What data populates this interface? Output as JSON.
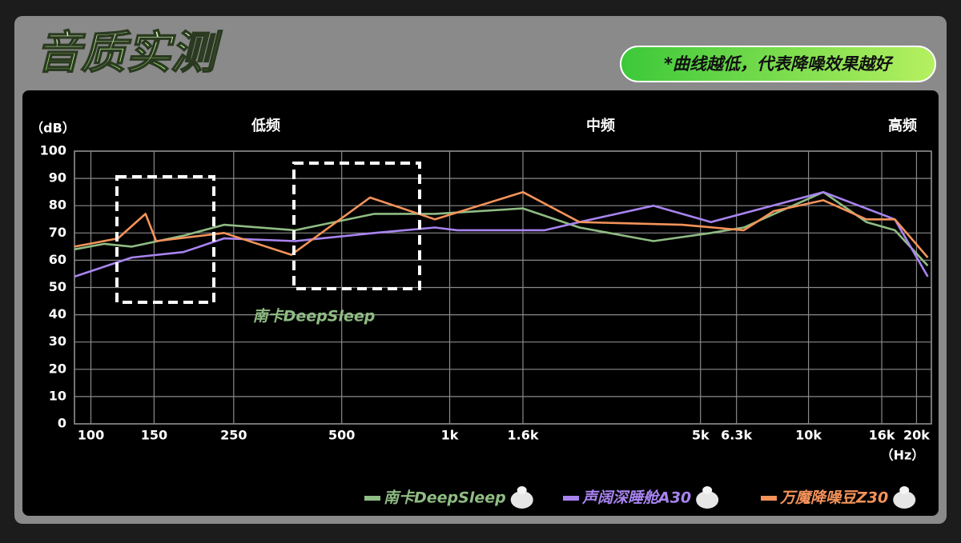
{
  "header": {
    "title": "音质实测",
    "note": "*曲线越低，代表降噪效果越好"
  },
  "chart_data": {
    "type": "line",
    "y_unit": "（dB）",
    "x_unit": "（Hz）",
    "bands": [
      "低频",
      "中频",
      "高频"
    ],
    "annotation": "南卡DeepSleep",
    "xscale": "log",
    "grid": true,
    "xlim": [
      90,
      22000
    ],
    "ylim": [
      0,
      100
    ],
    "xticks": [
      100,
      150,
      250,
      500,
      {
        "value": 1000,
        "label": "1k"
      },
      {
        "value": 1600,
        "label": "1.6k"
      },
      {
        "value": 5000,
        "label": "5k"
      },
      {
        "value": 6300,
        "label": "6.3k"
      },
      {
        "value": 10000,
        "label": "10k"
      },
      {
        "value": 16000,
        "label": "16k"
      },
      {
        "value": 20000,
        "label": "20k"
      }
    ],
    "yticks": [
      0,
      10,
      20,
      30,
      40,
      50,
      60,
      70,
      80,
      90,
      100
    ],
    "series": [
      {
        "name": "南卡DeepSleep",
        "color": "#8fbc83",
        "x": [
          90,
          109,
          130,
          181,
          235,
          371,
          617,
          910,
          1600,
          2300,
          3700,
          5350,
          6600,
          11000,
          14500,
          17400,
          21500
        ],
        "values": [
          64,
          66,
          65,
          69,
          73,
          71,
          77,
          77,
          79,
          72,
          67,
          70,
          72,
          85,
          74,
          71,
          58
        ]
      },
      {
        "name": "声阔深睡舱A30",
        "color": "#a884f0",
        "x": [
          90,
          130,
          181,
          235,
          371,
          617,
          910,
          1050,
          1840,
          2300,
          3700,
          5350,
          11000,
          17400,
          21500
        ],
        "values": [
          54,
          61,
          63,
          68,
          67,
          70,
          72,
          71,
          71,
          74,
          80,
          74,
          85,
          75,
          54
        ]
      },
      {
        "name": "万魔降噪豆Z30",
        "color": "#f4935a",
        "x": [
          90,
          119,
          142,
          152,
          235,
          362,
          600,
          910,
          1600,
          2300,
          4450,
          6600,
          8000,
          11000,
          14500,
          17400,
          21500
        ],
        "values": [
          65,
          68,
          77,
          67,
          70,
          62,
          83,
          75,
          85,
          74,
          73,
          71,
          78,
          82,
          75,
          75,
          61
        ]
      }
    ]
  }
}
